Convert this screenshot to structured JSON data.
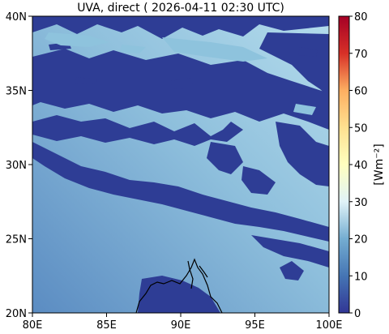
{
  "title": "UVA, direct ( 2026-04-11 02:30 UTC)",
  "map": {
    "lon_range": [
      80,
      100
    ],
    "lat_range": [
      20,
      40
    ],
    "x_ticks": [
      "80E",
      "85E",
      "90E",
      "95E",
      "100E"
    ],
    "y_ticks": [
      "20N",
      "25N",
      "30N",
      "35N",
      "40N"
    ],
    "field": "UVA direct irradiance",
    "background_colors": {
      "low": "#2e3d95",
      "mid": "#6f9fcb",
      "high": "#a8d2e4"
    }
  },
  "colorbar": {
    "label": "[Wm⁻²]",
    "range": [
      0,
      80
    ],
    "ticks": [
      "0",
      "10",
      "20",
      "30",
      "40",
      "50",
      "60",
      "70",
      "80"
    ],
    "colormap": "RdYlBu_r"
  }
}
